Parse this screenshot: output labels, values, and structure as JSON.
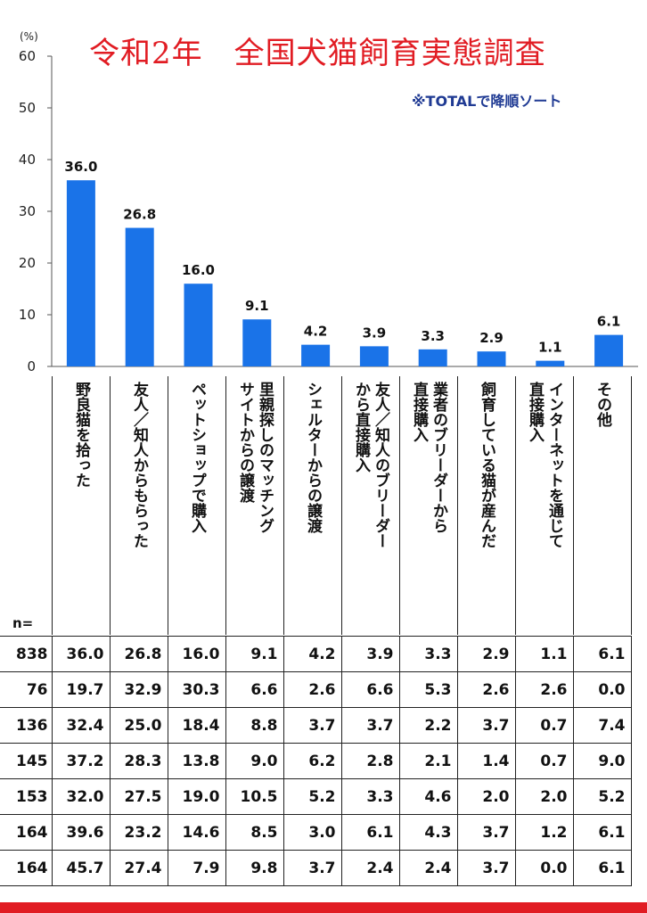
{
  "chart_data": {
    "type": "bar",
    "title": "令和2年　全国犬猫飼育実態調査",
    "note": "※TOTALで降順ソート",
    "y_unit": "(%)",
    "ylim": [
      0,
      60
    ],
    "yticks": [
      0,
      10,
      20,
      30,
      40,
      50,
      60
    ],
    "bar_color": "#1a73e8",
    "categories": [
      "野良猫を拾った",
      "友人／知人からもらった",
      "ペットショップで購入",
      "里親探しのマッチング\nサイトからの譲渡",
      "シェルターからの譲渡",
      "友人／知人のブリーダー\nから直接購入",
      "業者のブリーダーから\n直接購入",
      "飼育している猫が産んだ",
      "インターネットを通じて\n直接購入",
      "その他"
    ],
    "values": [
      36.0,
      26.8,
      16.0,
      9.1,
      4.2,
      3.9,
      3.3,
      2.9,
      1.1,
      6.1
    ],
    "value_labels": [
      "36.0",
      "26.8",
      "16.0",
      "9.1",
      "4.2",
      "3.9",
      "3.3",
      "2.9",
      "1.1",
      "6.1"
    ]
  },
  "table": {
    "n_header": "n=",
    "rows": [
      {
        "n": "838",
        "values": [
          "36.0",
          "26.8",
          "16.0",
          "9.1",
          "4.2",
          "3.9",
          "3.3",
          "2.9",
          "1.1",
          "6.1"
        ]
      },
      {
        "n": "76",
        "values": [
          "19.7",
          "32.9",
          "30.3",
          "6.6",
          "2.6",
          "6.6",
          "5.3",
          "2.6",
          "2.6",
          "0.0"
        ]
      },
      {
        "n": "136",
        "values": [
          "32.4",
          "25.0",
          "18.4",
          "8.8",
          "3.7",
          "3.7",
          "2.2",
          "3.7",
          "0.7",
          "7.4"
        ]
      },
      {
        "n": "145",
        "values": [
          "37.2",
          "28.3",
          "13.8",
          "9.0",
          "6.2",
          "2.8",
          "2.1",
          "1.4",
          "0.7",
          "9.0"
        ]
      },
      {
        "n": "153",
        "values": [
          "32.0",
          "27.5",
          "19.0",
          "10.5",
          "5.2",
          "3.3",
          "4.6",
          "2.0",
          "2.0",
          "5.2"
        ]
      },
      {
        "n": "164",
        "values": [
          "39.6",
          "23.2",
          "14.6",
          "8.5",
          "3.0",
          "6.1",
          "4.3",
          "3.7",
          "1.2",
          "6.1"
        ]
      },
      {
        "n": "164",
        "values": [
          "45.7",
          "27.4",
          "7.9",
          "9.8",
          "3.7",
          "2.4",
          "2.4",
          "3.7",
          "0.0",
          "6.1"
        ]
      }
    ]
  },
  "colors": {
    "title": "#e11c23",
    "note": "#1f3a93",
    "bar": "#1a73e8",
    "footer_bar": "#e11c23"
  }
}
